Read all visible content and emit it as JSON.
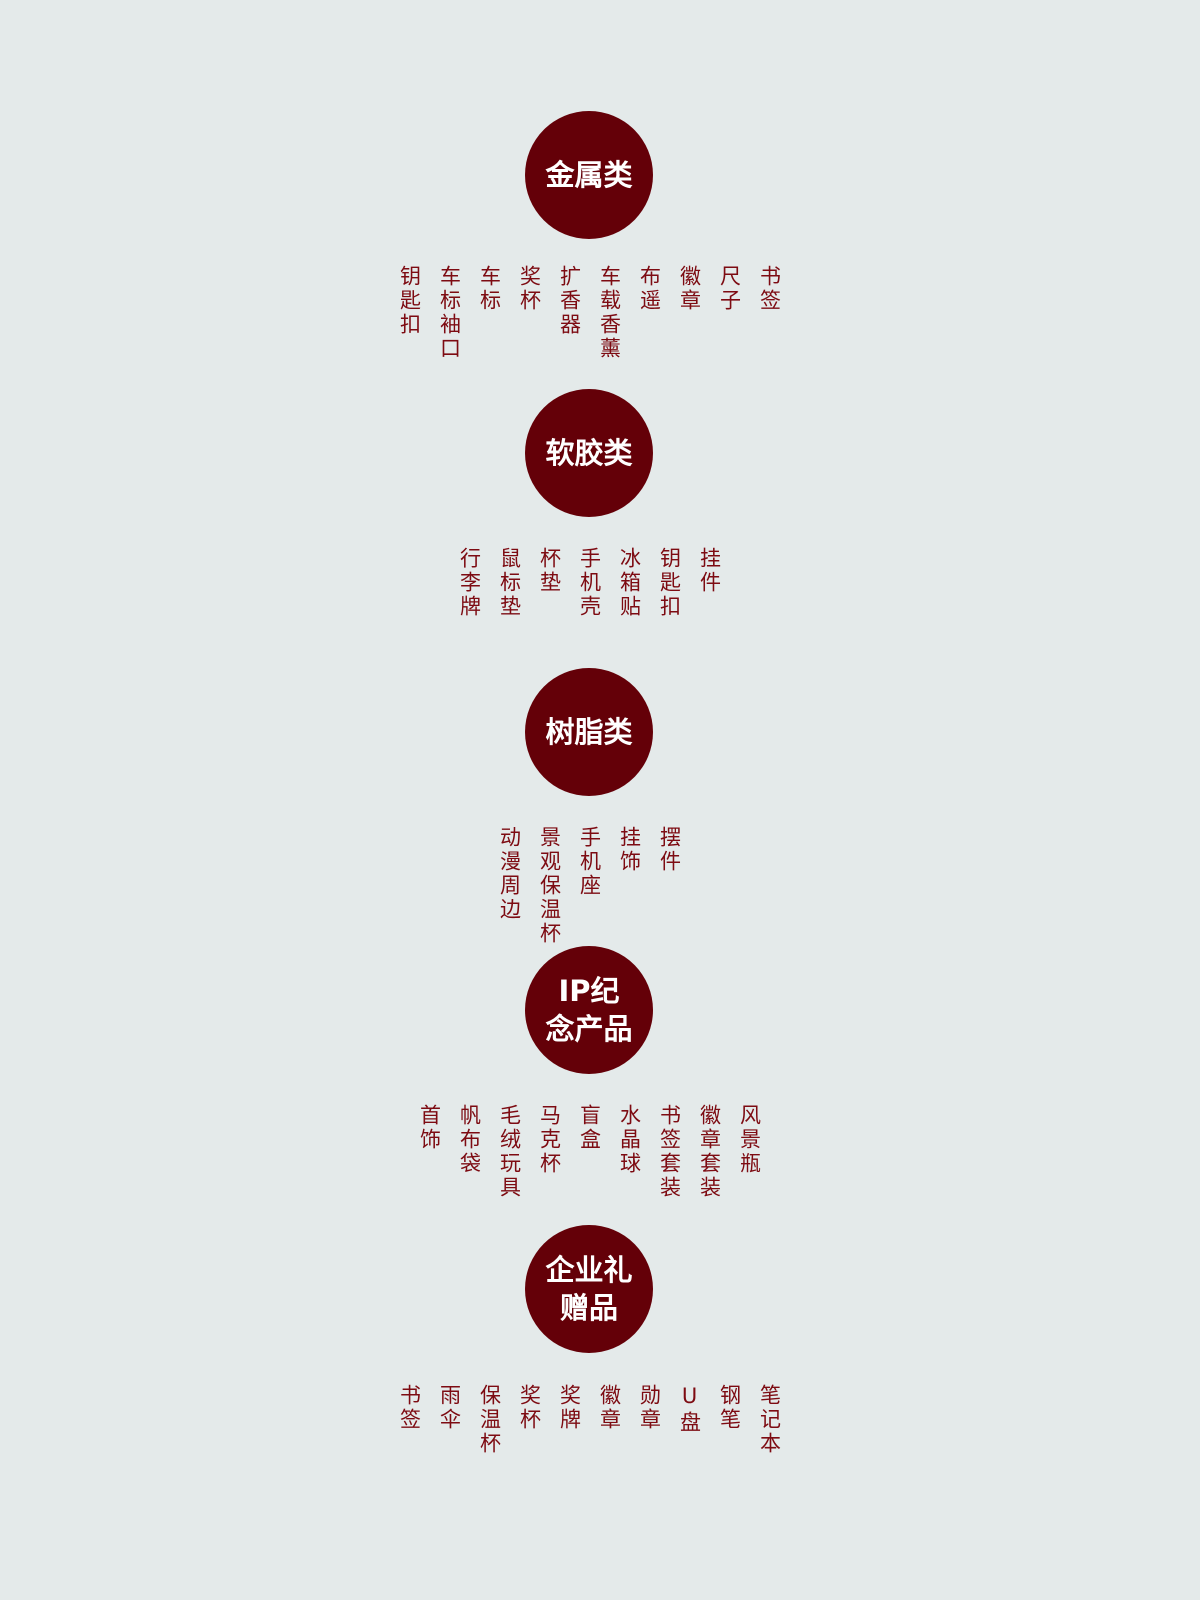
{
  "categories": [
    {
      "title": "金属类",
      "items": [
        "钥匙扣",
        "车标袖口",
        "车标",
        "奖杯",
        "扩香器",
        "车载香薰",
        "布遥",
        "徽章",
        "尺子",
        "书签"
      ]
    },
    {
      "title": "软胶类",
      "items": [
        "行李牌",
        "鼠标垫",
        "杯垫",
        "手机壳",
        "冰箱贴",
        "钥匙扣",
        "挂件"
      ]
    },
    {
      "title": "树脂类",
      "items": [
        "动漫周边",
        "景观保温杯",
        "手机座",
        "挂饰",
        "摆件"
      ]
    },
    {
      "title": "IP纪念产品",
      "items": [
        "首饰",
        "帆布袋",
        "毛绒玩具",
        "马克杯",
        "盲盒",
        "水晶球",
        "书签套装",
        "徽章套装",
        "风景瓶"
      ]
    },
    {
      "title": "企业礼赠品",
      "items": [
        "书签",
        "雨伞",
        "保温杯",
        "奖杯",
        "奖牌",
        "徽章",
        "勋章",
        "U盘",
        "钢笔",
        "笔记本"
      ]
    }
  ],
  "colors": {
    "background": "#e4eaea",
    "circle": "#640008",
    "text": "#7d0b12"
  }
}
